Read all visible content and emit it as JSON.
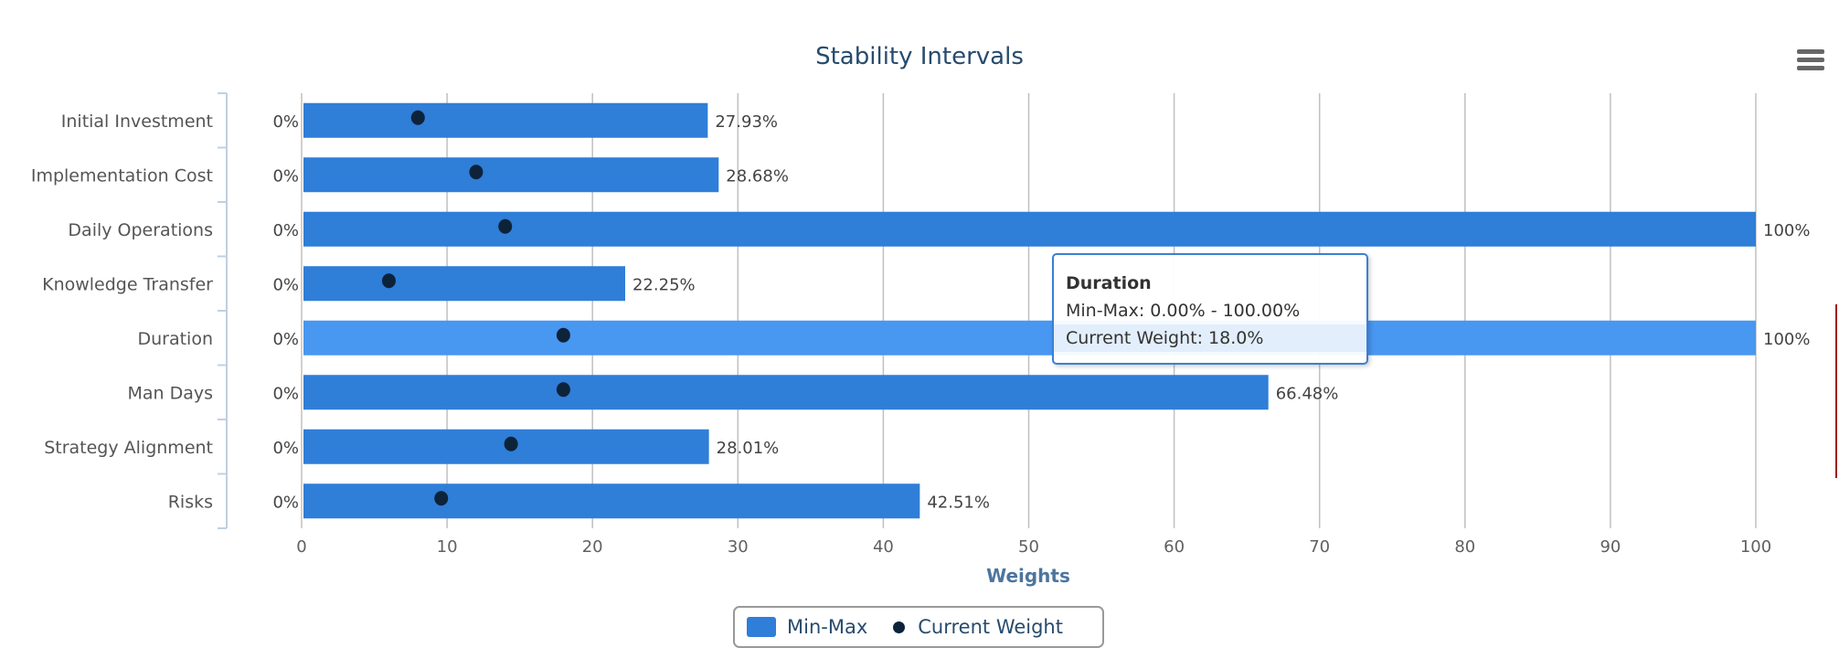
{
  "chart_data": {
    "type": "bar",
    "orientation": "horizontal",
    "title": "Stability Intervals",
    "xlabel": "Weights",
    "xlim": [
      0,
      100
    ],
    "xticks": [
      "0",
      "10",
      "20",
      "30",
      "40",
      "50",
      "60",
      "70",
      "80",
      "90",
      "100"
    ],
    "grid": true,
    "legend_position": "bottom",
    "categories": [
      "Initial Investment",
      "Implementation Cost",
      "Daily Operations",
      "Knowledge Transfer",
      "Duration",
      "Man Days",
      "Strategy Alignment",
      "Risks"
    ],
    "series": [
      {
        "name": "Min-Max",
        "type": "columnrange",
        "color": "#2f7ed8",
        "low": [
          0,
          0,
          0,
          0,
          0,
          0,
          0,
          0
        ],
        "high": [
          27.93,
          28.68,
          100,
          22.25,
          100,
          66.48,
          28.01,
          42.51
        ],
        "low_labels": [
          "0%",
          "0%",
          "0%",
          "0%",
          "0%",
          "0%",
          "0%",
          "0%"
        ],
        "high_labels": [
          "27.93%",
          "28.68%",
          "100%",
          "22.25%",
          "100%",
          "66.48%",
          "28.01%",
          "42.51%"
        ]
      },
      {
        "name": "Current Weight",
        "type": "scatter",
        "color": "#0d233a",
        "values": [
          8,
          12,
          14,
          6,
          18,
          18,
          14.4,
          9.6
        ]
      }
    ],
    "highlighted_category": "Duration",
    "highlight_color": "#4897f1"
  },
  "tooltip": {
    "title": "Duration",
    "line1": "Min-Max: 0.00% - 100.00%",
    "line2": "Current Weight: 18.0%"
  },
  "legend": {
    "items": [
      "Min-Max",
      "Current Weight"
    ]
  },
  "menu_icon": "hamburger-menu-icon"
}
